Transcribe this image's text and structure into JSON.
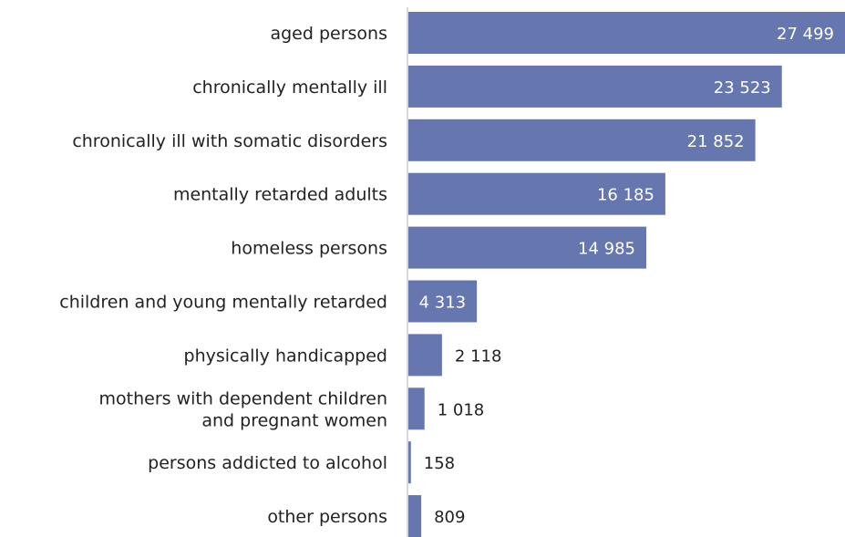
{
  "chart_data": {
    "type": "bar",
    "orientation": "horizontal",
    "categories": [
      [
        "aged persons"
      ],
      [
        "chronically mentally ill"
      ],
      [
        "chronically ill with somatic disorders"
      ],
      [
        "mentally retarded adults"
      ],
      [
        "homeless persons"
      ],
      [
        "children and young mentally retarded"
      ],
      [
        "physically handicapped"
      ],
      [
        "mothers with dependent children",
        "and pregnant women"
      ],
      [
        "persons addicted to alcohol"
      ],
      [
        "other persons"
      ]
    ],
    "values": [
      27499,
      23523,
      21852,
      16185,
      14985,
      4313,
      2118,
      1018,
      158,
      809
    ],
    "value_labels": [
      "27 499",
      "23 523",
      "21 852",
      "16 185",
      "14 985",
      "4 313",
      "2 118",
      "1 018",
      "158",
      "809"
    ],
    "xlim": [
      0,
      27499
    ],
    "grid": false,
    "legend": "none",
    "colors": {
      "bar": "#6677b0",
      "axis": "#cccccc",
      "label_inside": "#ffffff",
      "label_outside": "#222222"
    }
  }
}
